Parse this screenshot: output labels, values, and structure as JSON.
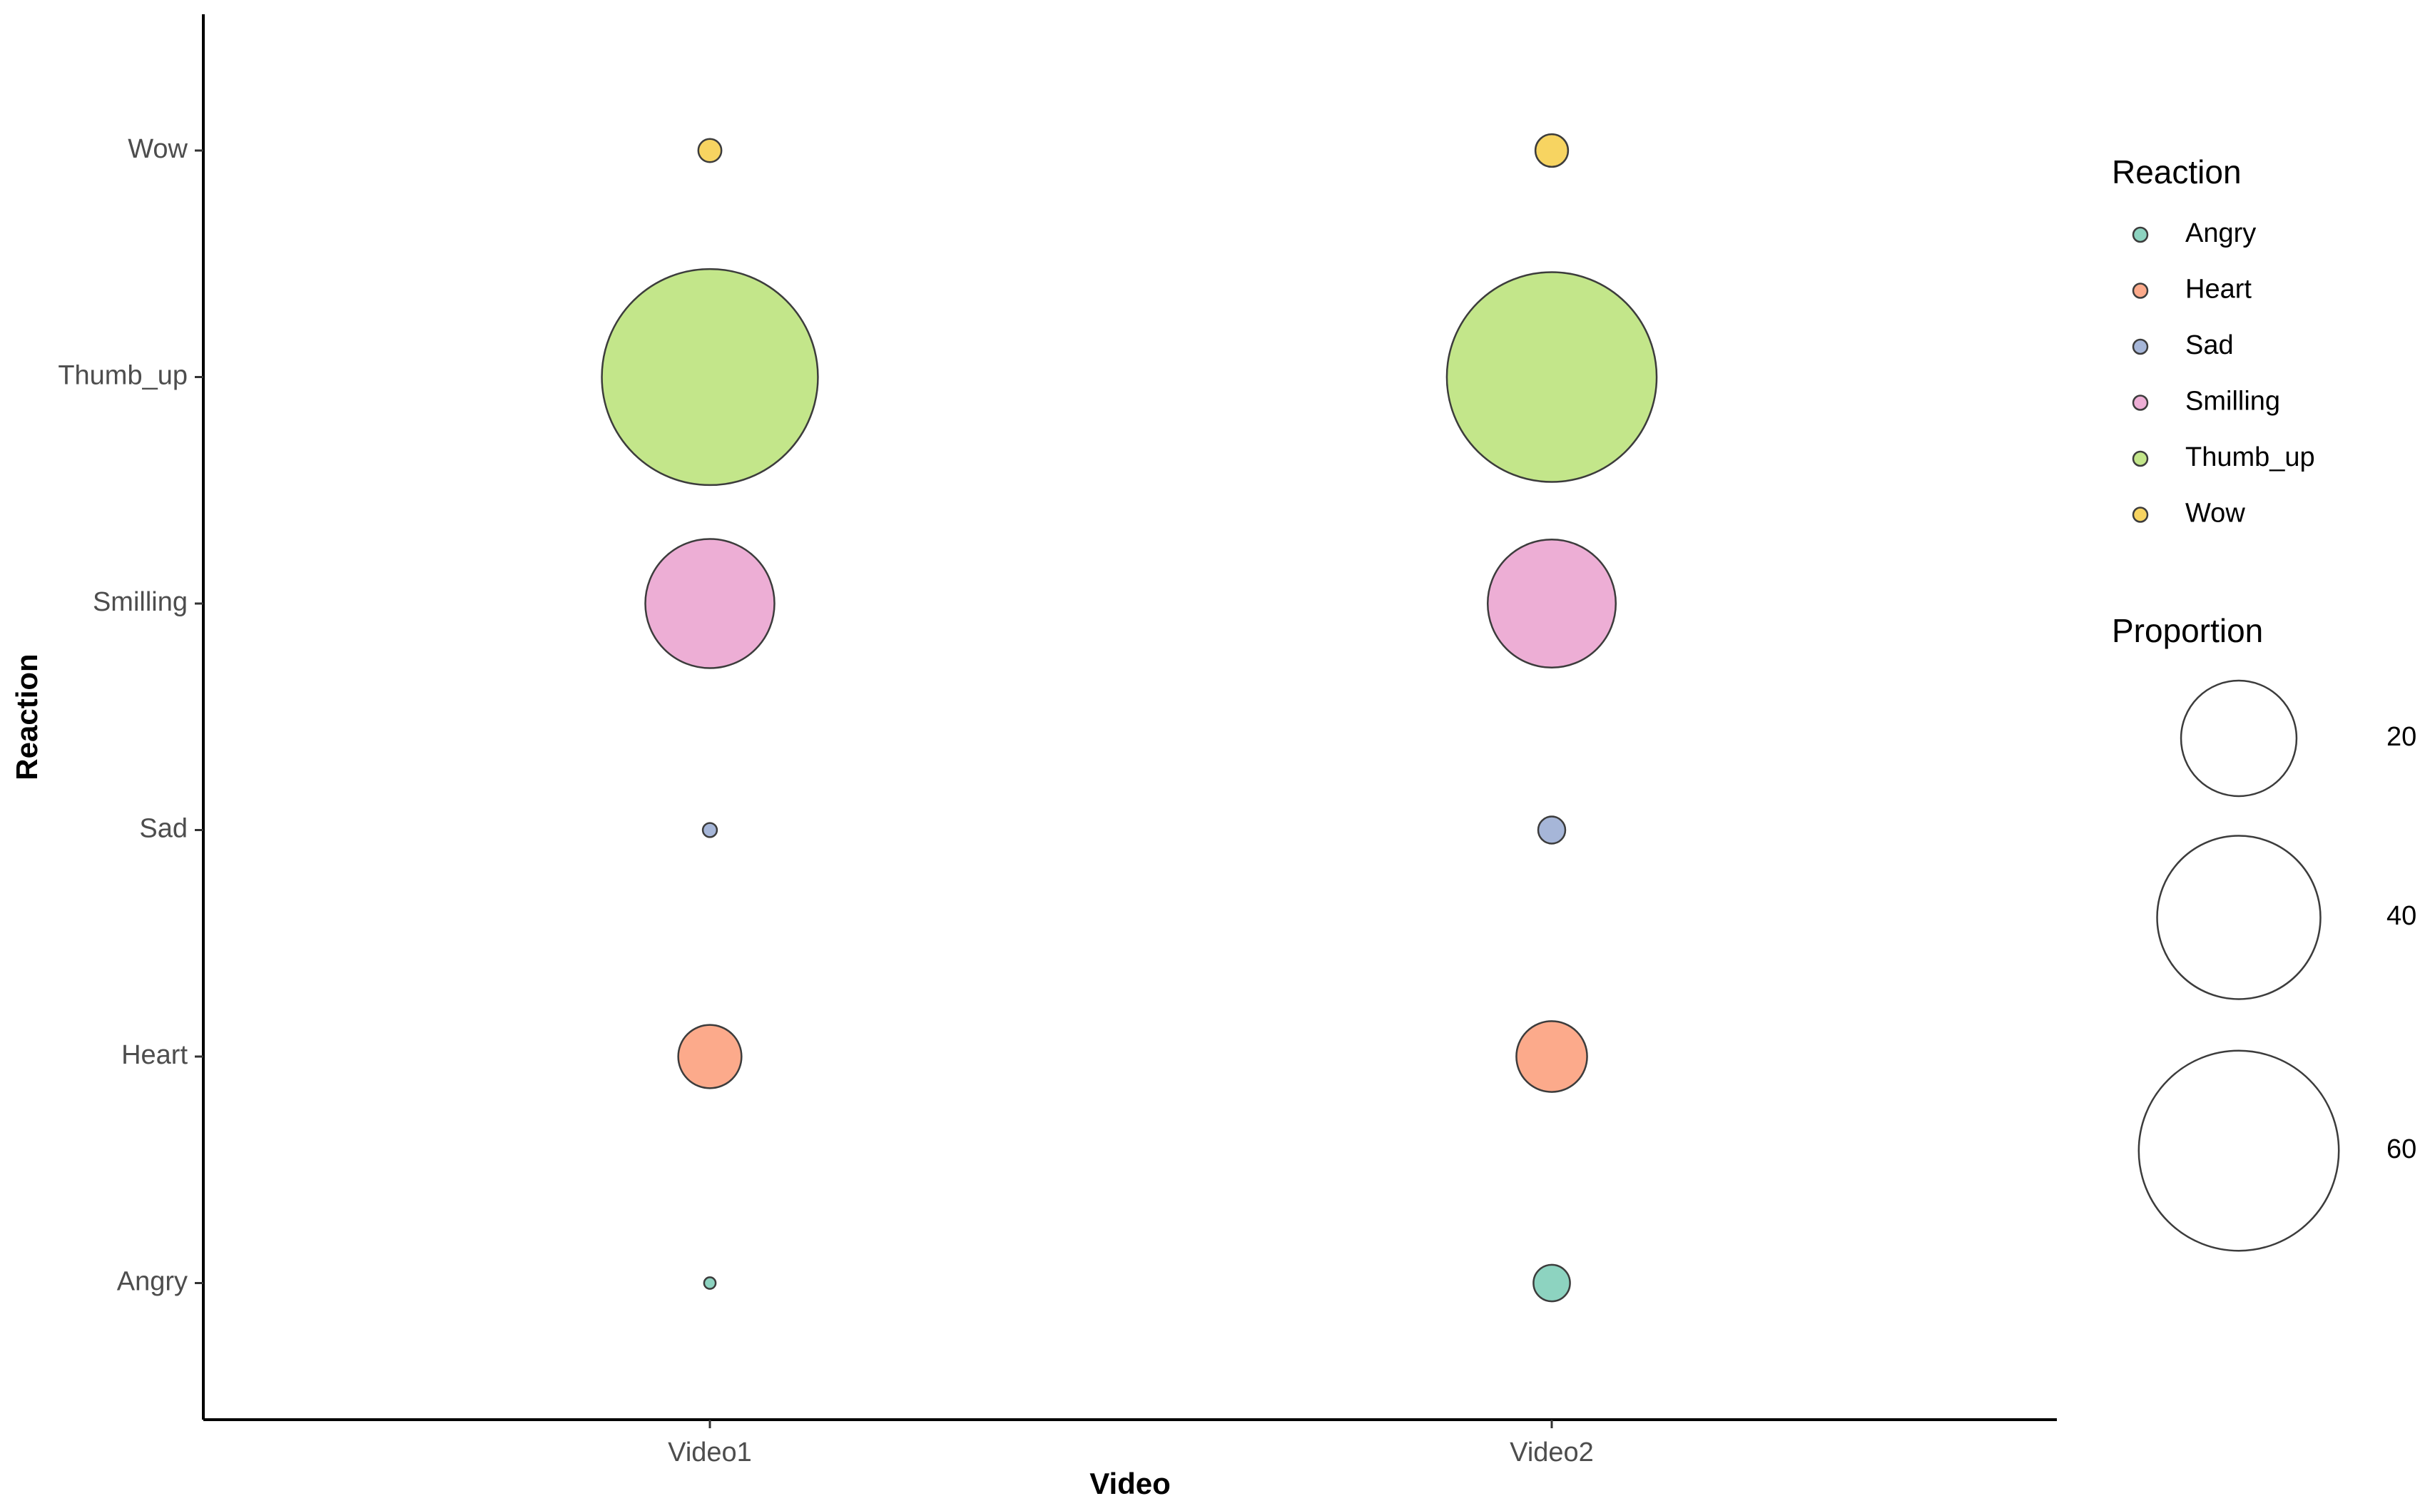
{
  "chart_data": {
    "type": "scatter",
    "subtype": "bubble",
    "xlabel": "Video",
    "ylabel": "Reaction",
    "categories_x": [
      "Video1",
      "Video2"
    ],
    "categories_y": [
      "Angry",
      "Heart",
      "Sad",
      "Smilling",
      "Thumb_up",
      "Wow"
    ],
    "points": [
      {
        "x": "Video1",
        "y": "Wow",
        "proportion": 0.8
      },
      {
        "x": "Video1",
        "y": "Thumb_up",
        "proportion": 70.0
      },
      {
        "x": "Video1",
        "y": "Smilling",
        "proportion": 25.0
      },
      {
        "x": "Video1",
        "y": "Sad",
        "proportion": 0.3
      },
      {
        "x": "Video1",
        "y": "Heart",
        "proportion": 6.0
      },
      {
        "x": "Video1",
        "y": "Angry",
        "proportion": 0.2
      },
      {
        "x": "Video2",
        "y": "Wow",
        "proportion": 1.6
      },
      {
        "x": "Video2",
        "y": "Thumb_up",
        "proportion": 66.0
      },
      {
        "x": "Video2",
        "y": "Smilling",
        "proportion": 24.6
      },
      {
        "x": "Video2",
        "y": "Sad",
        "proportion": 1.1
      },
      {
        "x": "Video2",
        "y": "Heart",
        "proportion": 7.5
      },
      {
        "x": "Video2",
        "y": "Angry",
        "proportion": 2.0
      }
    ],
    "colors": {
      "Angry": "#8dd3c0",
      "Heart": "#fcaa8b",
      "Sad": "#a6b6d8",
      "Smilling": "#edaed5",
      "Thumb_up": "#c3e68a",
      "Wow": "#f7d461"
    },
    "legend": {
      "color_title": "Reaction",
      "color_entries": [
        "Angry",
        "Heart",
        "Sad",
        "Smilling",
        "Thumb_up",
        "Wow"
      ],
      "size_title": "Proportion",
      "size_entries": [
        {
          "label": "20",
          "value": 20
        },
        {
          "label": "40",
          "value": 40
        },
        {
          "label": "60",
          "value": 60
        }
      ],
      "position": "right"
    },
    "grid": false
  }
}
